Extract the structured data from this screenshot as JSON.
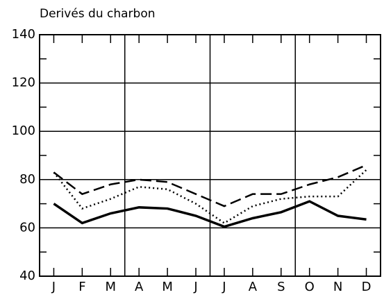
{
  "chart_data": {
    "type": "line",
    "title": "Derivés du charbon",
    "categories": [
      "J",
      "F",
      "M",
      "A",
      "M",
      "J",
      "J",
      "A",
      "S",
      "O",
      "N",
      "D"
    ],
    "series": [
      {
        "color": "#000000",
        "dash": "solid",
        "values": [
          70,
          62,
          66,
          68.5,
          68,
          65,
          60.5,
          64,
          66.5,
          71,
          65,
          63.5
        ]
      },
      {
        "color": "#000000",
        "dash": "dotted",
        "values": [
          83,
          68,
          72,
          77,
          76,
          70,
          62,
          69,
          72,
          73,
          73,
          84
        ]
      },
      {
        "color": "#000000",
        "dash": "dashed",
        "values": [
          83,
          74,
          78,
          80,
          79,
          74,
          69,
          74,
          74,
          78,
          81,
          86
        ]
      }
    ],
    "ylim": [
      40,
      140
    ],
    "yticks": [
      40,
      60,
      80,
      100,
      120,
      140
    ],
    "minor_yticks": [
      50,
      70,
      90,
      110,
      130
    ],
    "grid": true
  }
}
